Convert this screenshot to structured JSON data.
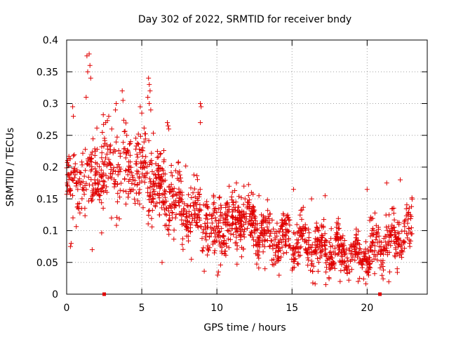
{
  "chart_data": {
    "type": "scatter",
    "title": "Day 302 of 2022, SRMTID for receiver bndy",
    "xlabel": "GPS time / hours",
    "ylabel": "SRMTID / TECUs",
    "xlim": [
      0,
      24
    ],
    "ylim": [
      0,
      0.4
    ],
    "x_ticks": [
      0,
      5,
      10,
      15,
      20
    ],
    "y_ticks": [
      0,
      0.05,
      0.1,
      0.15,
      0.2,
      0.25,
      0.3,
      0.35,
      0.4
    ],
    "x_tick_labels": [
      "0",
      "5",
      "10",
      "15",
      "20"
    ],
    "y_tick_labels": [
      "0",
      "0.05",
      "0.1",
      "0.15",
      "0.2",
      "0.25",
      "0.3",
      "0.35",
      "0.4"
    ],
    "grid": true,
    "marker": "+",
    "color": "#e00000",
    "trend": [
      [
        0.0,
        0.17
      ],
      [
        1.0,
        0.18
      ],
      [
        2.0,
        0.19
      ],
      [
        3.0,
        0.2
      ],
      [
        4.0,
        0.19
      ],
      [
        5.0,
        0.19
      ],
      [
        6.0,
        0.17
      ],
      [
        7.0,
        0.15
      ],
      [
        8.0,
        0.13
      ],
      [
        9.0,
        0.12
      ],
      [
        10.0,
        0.1
      ],
      [
        11.0,
        0.11
      ],
      [
        12.0,
        0.12
      ],
      [
        13.0,
        0.1
      ],
      [
        14.0,
        0.085
      ],
      [
        15.0,
        0.085
      ],
      [
        16.0,
        0.08
      ],
      [
        17.0,
        0.07
      ],
      [
        18.0,
        0.065
      ],
      [
        19.0,
        0.06
      ],
      [
        20.0,
        0.065
      ],
      [
        21.0,
        0.08
      ],
      [
        22.0,
        0.09
      ],
      [
        23.0,
        0.11
      ]
    ],
    "spread": [
      [
        0.0,
        0.05
      ],
      [
        2.0,
        0.07
      ],
      [
        5.0,
        0.07
      ],
      [
        7.0,
        0.06
      ],
      [
        10.0,
        0.05
      ],
      [
        13.0,
        0.04
      ],
      [
        16.0,
        0.04
      ],
      [
        19.0,
        0.03
      ],
      [
        21.0,
        0.04
      ],
      [
        23.0,
        0.04
      ]
    ],
    "spikes": [
      [
        1.35,
        0.375
      ],
      [
        1.5,
        0.378
      ],
      [
        1.55,
        0.36
      ],
      [
        1.4,
        0.35
      ],
      [
        1.6,
        0.34
      ],
      [
        1.3,
        0.31
      ],
      [
        0.4,
        0.295
      ],
      [
        0.45,
        0.28
      ],
      [
        3.3,
        0.3
      ],
      [
        3.25,
        0.29
      ],
      [
        3.7,
        0.32
      ],
      [
        3.75,
        0.305
      ],
      [
        5.45,
        0.34
      ],
      [
        5.5,
        0.33
      ],
      [
        5.55,
        0.32
      ],
      [
        5.4,
        0.31
      ],
      [
        5.5,
        0.3
      ],
      [
        4.9,
        0.295
      ],
      [
        5.0,
        0.285
      ],
      [
        5.6,
        0.29
      ],
      [
        6.7,
        0.27
      ],
      [
        6.75,
        0.265
      ],
      [
        6.8,
        0.26
      ],
      [
        8.9,
        0.3
      ],
      [
        8.95,
        0.295
      ],
      [
        8.9,
        0.27
      ],
      [
        2.6,
        0.27
      ],
      [
        2.8,
        0.28
      ],
      [
        3.0,
        0.26
      ],
      [
        4.0,
        0.25
      ],
      [
        22.2,
        0.18
      ],
      [
        21.3,
        0.175
      ],
      [
        20.0,
        0.165
      ],
      [
        17.2,
        0.155
      ],
      [
        16.3,
        0.15
      ],
      [
        15.1,
        0.165
      ],
      [
        11.8,
        0.17
      ],
      [
        11.3,
        0.175
      ],
      [
        12.3,
        0.16
      ],
      [
        12.8,
        0.155
      ]
    ],
    "lows": [
      [
        0.25,
        0.075
      ],
      [
        0.3,
        0.08
      ],
      [
        1.7,
        0.07
      ],
      [
        6.35,
        0.05
      ],
      [
        8.3,
        0.055
      ],
      [
        10.05,
        0.03
      ],
      [
        10.1,
        0.035
      ],
      [
        13.2,
        0.04
      ],
      [
        17.25,
        0.015
      ],
      [
        19.4,
        0.02
      ],
      [
        19.5,
        0.025
      ],
      [
        20.1,
        0.03
      ],
      [
        21.5,
        0.035
      ],
      [
        22.0,
        0.04
      ],
      [
        18.2,
        0.02
      ]
    ],
    "axis_markers": [
      2.5,
      20.85
    ],
    "n_points": 1700,
    "x_range_data": [
      0,
      23
    ]
  }
}
